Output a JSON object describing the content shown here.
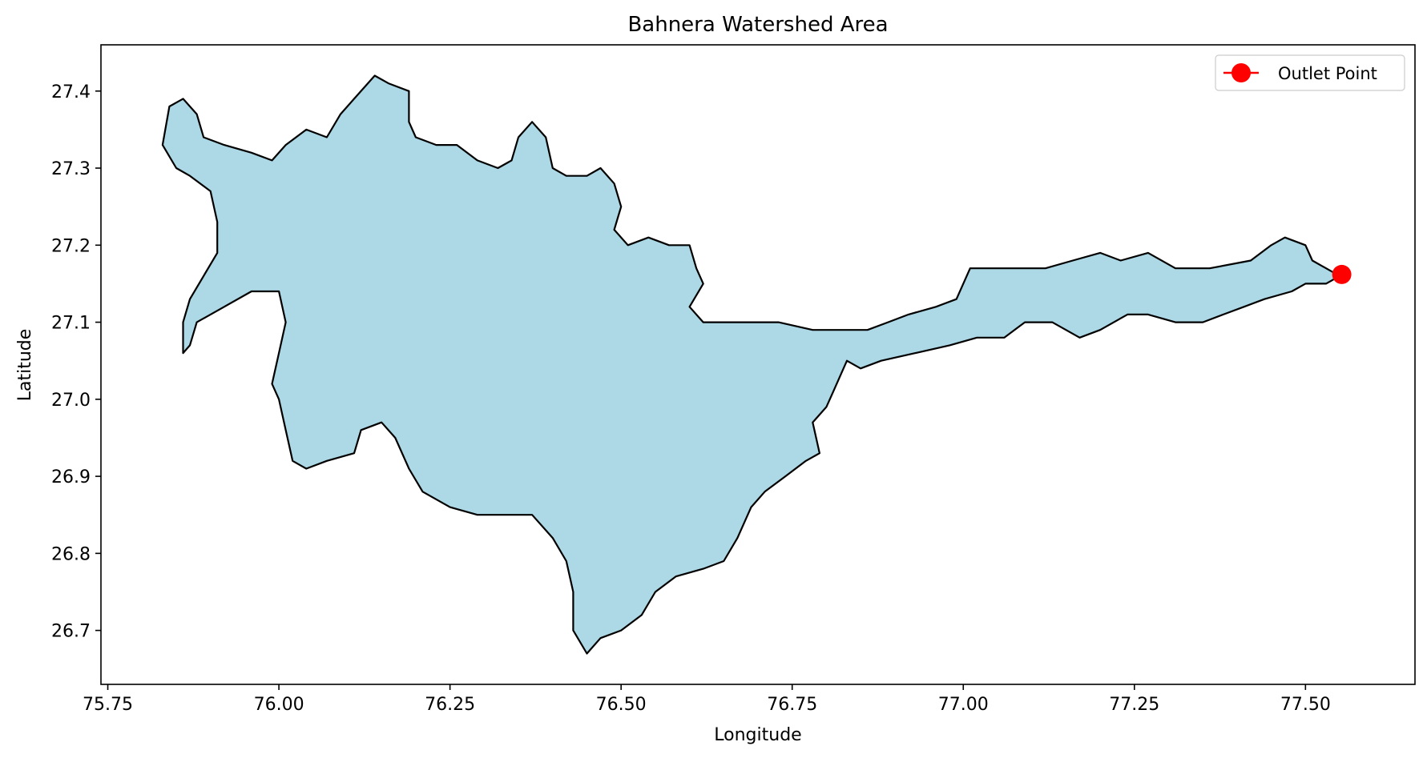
{
  "chart_data": {
    "type": "map",
    "title": "Bahnera Watershed Area",
    "xlabel": "Longitude",
    "ylabel": "Latitude",
    "xlim": [
      75.74,
      77.66
    ],
    "ylim": [
      26.63,
      27.46
    ],
    "xticks": [
      75.75,
      76.0,
      76.25,
      76.5,
      76.75,
      77.0,
      77.25,
      77.5
    ],
    "xtick_labels": [
      "75.75",
      "76.00",
      "76.25",
      "76.50",
      "76.75",
      "77.00",
      "77.25",
      "77.50"
    ],
    "yticks": [
      26.7,
      26.8,
      26.9,
      27.0,
      27.1,
      27.2,
      27.3,
      27.4
    ],
    "ytick_labels": [
      "26.7",
      "26.8",
      "26.9",
      "27.0",
      "27.1",
      "27.2",
      "27.3",
      "27.4"
    ],
    "grid": false,
    "legend_position": "top-right",
    "watershed": {
      "fill_color": "#add8e6",
      "edge_color": "#000000",
      "boundary": [
        [
          75.84,
          27.38
        ],
        [
          75.86,
          27.39
        ],
        [
          75.88,
          27.37
        ],
        [
          75.89,
          27.34
        ],
        [
          75.92,
          27.33
        ],
        [
          75.96,
          27.32
        ],
        [
          75.99,
          27.31
        ],
        [
          76.01,
          27.33
        ],
        [
          76.04,
          27.35
        ],
        [
          76.07,
          27.34
        ],
        [
          76.09,
          27.37
        ],
        [
          76.11,
          27.39
        ],
        [
          76.14,
          27.42
        ],
        [
          76.16,
          27.41
        ],
        [
          76.19,
          27.4
        ],
        [
          76.19,
          27.36
        ],
        [
          76.2,
          27.34
        ],
        [
          76.23,
          27.33
        ],
        [
          76.26,
          27.33
        ],
        [
          76.29,
          27.31
        ],
        [
          76.32,
          27.3
        ],
        [
          76.34,
          27.31
        ],
        [
          76.35,
          27.34
        ],
        [
          76.37,
          27.36
        ],
        [
          76.39,
          27.34
        ],
        [
          76.4,
          27.3
        ],
        [
          76.42,
          27.29
        ],
        [
          76.45,
          27.29
        ],
        [
          76.47,
          27.3
        ],
        [
          76.49,
          27.28
        ],
        [
          76.5,
          27.25
        ],
        [
          76.49,
          27.22
        ],
        [
          76.51,
          27.2
        ],
        [
          76.54,
          27.21
        ],
        [
          76.57,
          27.2
        ],
        [
          76.6,
          27.2
        ],
        [
          76.61,
          27.17
        ],
        [
          76.62,
          27.15
        ],
        [
          76.6,
          27.12
        ],
        [
          76.62,
          27.1
        ],
        [
          76.67,
          27.1
        ],
        [
          76.73,
          27.1
        ],
        [
          76.78,
          27.09
        ],
        [
          76.82,
          27.09
        ],
        [
          76.86,
          27.09
        ],
        [
          76.89,
          27.1
        ],
        [
          76.92,
          27.11
        ],
        [
          76.96,
          27.12
        ],
        [
          76.99,
          27.13
        ],
        [
          77.01,
          27.17
        ],
        [
          77.05,
          27.17
        ],
        [
          77.09,
          27.17
        ],
        [
          77.12,
          27.17
        ],
        [
          77.16,
          27.18
        ],
        [
          77.2,
          27.19
        ],
        [
          77.23,
          27.18
        ],
        [
          77.27,
          27.19
        ],
        [
          77.31,
          27.17
        ],
        [
          77.36,
          27.17
        ],
        [
          77.42,
          27.18
        ],
        [
          77.45,
          27.2
        ],
        [
          77.47,
          27.21
        ],
        [
          77.5,
          27.2
        ],
        [
          77.51,
          27.18
        ],
        [
          77.55,
          27.16
        ],
        [
          77.53,
          27.15
        ],
        [
          77.5,
          27.15
        ],
        [
          77.48,
          27.14
        ],
        [
          77.44,
          27.13
        ],
        [
          77.41,
          27.12
        ],
        [
          77.38,
          27.11
        ],
        [
          77.35,
          27.1
        ],
        [
          77.31,
          27.1
        ],
        [
          77.27,
          27.11
        ],
        [
          77.24,
          27.11
        ],
        [
          77.2,
          27.09
        ],
        [
          77.17,
          27.08
        ],
        [
          77.13,
          27.1
        ],
        [
          77.09,
          27.1
        ],
        [
          77.06,
          27.08
        ],
        [
          77.02,
          27.08
        ],
        [
          76.98,
          27.07
        ],
        [
          76.93,
          27.06
        ],
        [
          76.88,
          27.05
        ],
        [
          76.85,
          27.04
        ],
        [
          76.83,
          27.05
        ],
        [
          76.81,
          27.01
        ],
        [
          76.8,
          26.99
        ],
        [
          76.78,
          26.97
        ],
        [
          76.79,
          26.93
        ],
        [
          76.77,
          26.92
        ],
        [
          76.74,
          26.9
        ],
        [
          76.71,
          26.88
        ],
        [
          76.69,
          26.86
        ],
        [
          76.67,
          26.82
        ],
        [
          76.65,
          26.79
        ],
        [
          76.62,
          26.78
        ],
        [
          76.58,
          26.77
        ],
        [
          76.55,
          26.75
        ],
        [
          76.53,
          26.72
        ],
        [
          76.5,
          26.7
        ],
        [
          76.47,
          26.69
        ],
        [
          76.45,
          26.67
        ],
        [
          76.43,
          26.7
        ],
        [
          76.43,
          26.75
        ],
        [
          76.42,
          26.79
        ],
        [
          76.4,
          26.82
        ],
        [
          76.37,
          26.85
        ],
        [
          76.33,
          26.85
        ],
        [
          76.29,
          26.85
        ],
        [
          76.25,
          26.86
        ],
        [
          76.21,
          26.88
        ],
        [
          76.19,
          26.91
        ],
        [
          76.17,
          26.95
        ],
        [
          76.15,
          26.97
        ],
        [
          76.12,
          26.96
        ],
        [
          76.11,
          26.93
        ],
        [
          76.07,
          26.92
        ],
        [
          76.04,
          26.91
        ],
        [
          76.02,
          26.92
        ],
        [
          76.01,
          26.96
        ],
        [
          76.0,
          27.0
        ],
        [
          75.99,
          27.02
        ],
        [
          76.0,
          27.06
        ],
        [
          76.01,
          27.1
        ],
        [
          76.0,
          27.14
        ],
        [
          75.96,
          27.14
        ],
        [
          75.92,
          27.12
        ],
        [
          75.88,
          27.1
        ],
        [
          75.87,
          27.07
        ],
        [
          75.86,
          27.06
        ],
        [
          75.86,
          27.1
        ],
        [
          75.87,
          27.13
        ],
        [
          75.89,
          27.16
        ],
        [
          75.91,
          27.19
        ],
        [
          75.91,
          27.23
        ],
        [
          75.9,
          27.27
        ],
        [
          75.87,
          27.29
        ],
        [
          75.85,
          27.3
        ],
        [
          75.83,
          27.33
        ]
      ]
    },
    "outlet_point": {
      "label": "Outlet Point",
      "lon": 77.553,
      "lat": 27.162,
      "color": "#ff0000"
    }
  }
}
